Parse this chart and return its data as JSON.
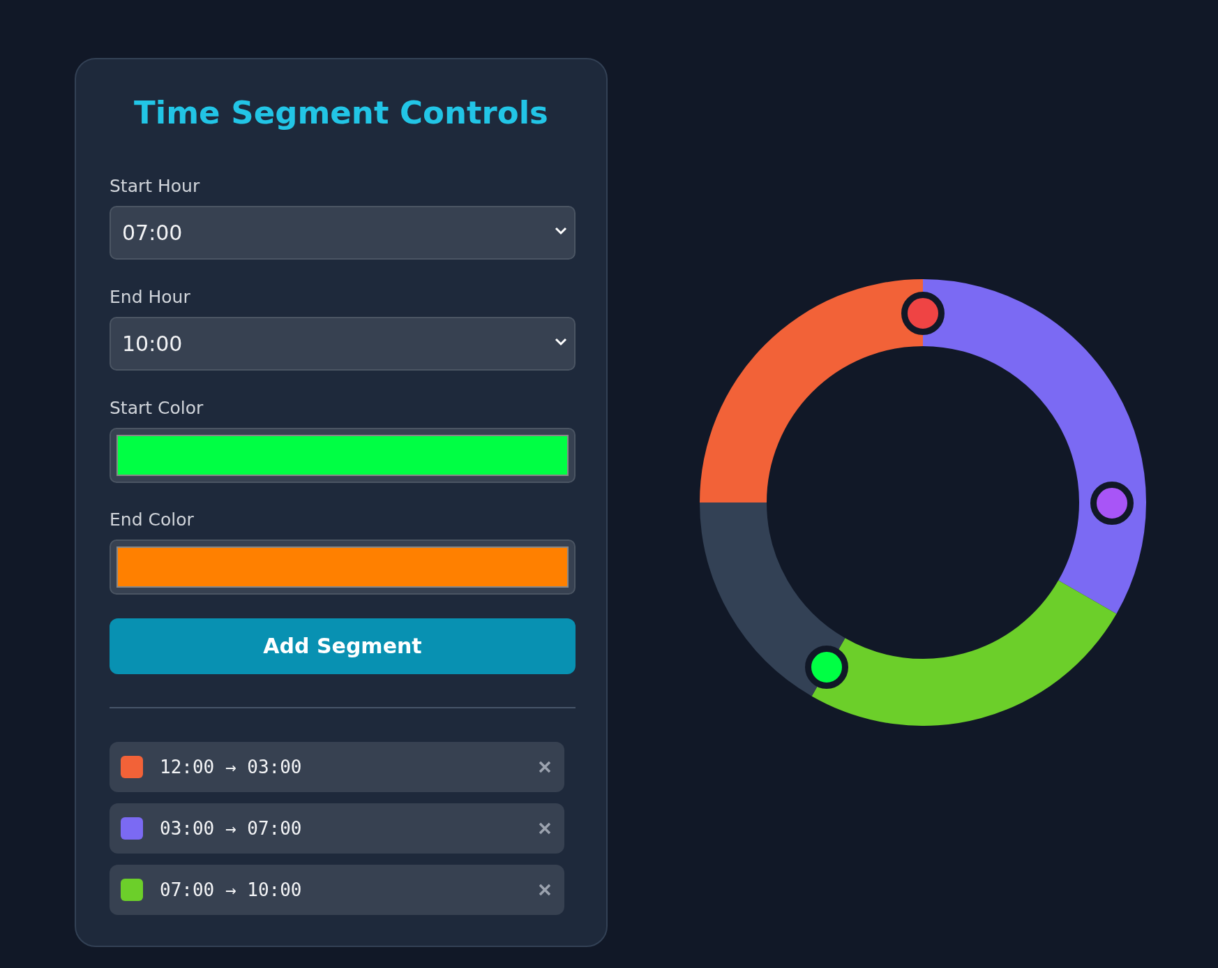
{
  "chart_data": {
    "type": "donut",
    "title": "Time Segment Controls",
    "categories": [
      "12:00 → 03:00",
      "03:00 → 07:00",
      "07:00 → 10:00",
      null
    ],
    "values": [
      25,
      33.3,
      25,
      16.7
    ],
    "colors": [
      "#f26238",
      "#7b6af3",
      "#6ccf2a",
      "#334155"
    ],
    "legend": "left",
    "annotations": [
      "Start Hour",
      "07:00",
      "End Hour",
      "10:00",
      "Start Color",
      "End Color",
      "Add Segment"
    ]
  }
}
